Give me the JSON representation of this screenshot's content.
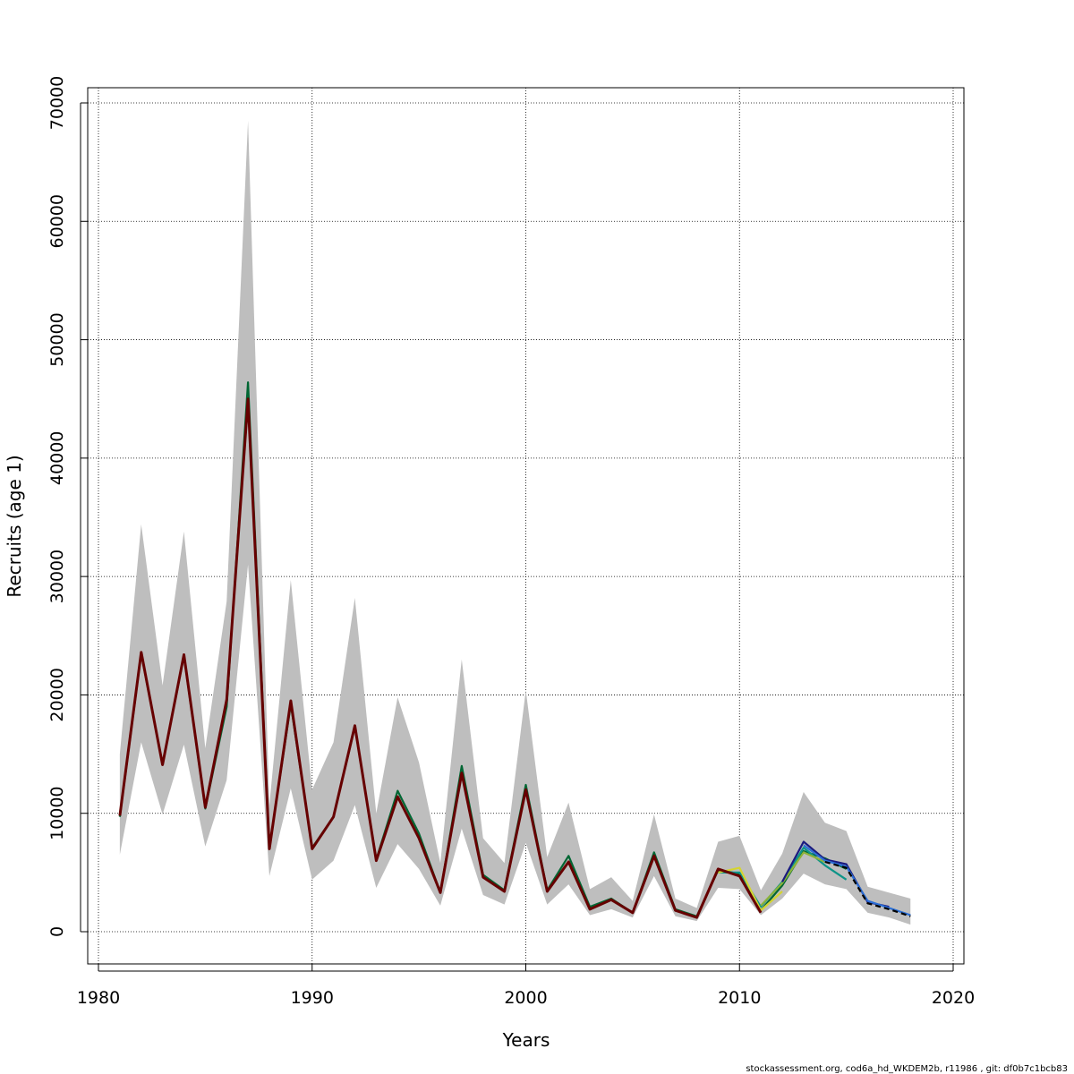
{
  "chart_data": {
    "type": "line",
    "title": "",
    "xlabel": "Years",
    "ylabel": "Recruits (age 1)",
    "xlim": [
      1980,
      2020
    ],
    "ylim": [
      0,
      70000
    ],
    "x_ticks": [
      "1980",
      "1990",
      "2000",
      "2010",
      "2020"
    ],
    "y_ticks": [
      "0",
      "10000",
      "20000",
      "30000",
      "40000",
      "50000",
      "60000",
      "70000"
    ],
    "grid": true,
    "legend": "none",
    "footer": "stockassessment.org, cod6a_hd_WKDEM2b, r11986 , git: df0b7c1bcb83",
    "confidence_band": {
      "x": [
        1981,
        1982,
        1983,
        1984,
        1985,
        1986,
        1987,
        1988,
        1989,
        1990,
        1991,
        1992,
        1993,
        1994,
        1995,
        1996,
        1997,
        1998,
        1999,
        2000,
        2001,
        2002,
        2003,
        2004,
        2005,
        2006,
        2007,
        2008,
        2009,
        2010,
        2011,
        2012,
        2013,
        2014,
        2015,
        2016,
        2017,
        2018
      ],
      "lower": [
        6500,
        16000,
        9900,
        15800,
        7200,
        12800,
        31000,
        4700,
        12100,
        4400,
        6000,
        10700,
        3700,
        7400,
        5300,
        2200,
        8700,
        3100,
        2300,
        7500,
        2300,
        4000,
        1400,
        1900,
        1200,
        4700,
        1300,
        900,
        3700,
        3600,
        1400,
        2800,
        4900,
        4000,
        3600,
        1600,
        1200,
        600
      ],
      "upper": [
        15000,
        34400,
        20800,
        33800,
        15500,
        27900,
        68500,
        10700,
        29700,
        12000,
        16000,
        28200,
        10000,
        19800,
        14300,
        5800,
        23000,
        7900,
        5800,
        20400,
        6300,
        10900,
        3600,
        4600,
        2600,
        9900,
        2800,
        2000,
        7600,
        8100,
        3500,
        6600,
        11800,
        9200,
        8500,
        3800,
        3300,
        2800
      ]
    },
    "series": [
      {
        "color": "#660000",
        "x": [
          1981,
          1982,
          1983,
          1984,
          1985,
          1986,
          1987,
          1988,
          1989,
          1990,
          1991,
          1992,
          1993,
          1994,
          1995,
          1996,
          1997,
          1998,
          1999,
          2000,
          2001,
          2002,
          2003,
          2004,
          2005,
          2006,
          2007,
          2008,
          2009,
          2010,
          2011
        ],
        "y": [
          9800,
          23600,
          14100,
          23400,
          10500,
          19600,
          45000,
          7000,
          19500,
          7000,
          9700,
          17400,
          6000,
          11400,
          7900,
          3300,
          13400,
          4600,
          3400,
          12000,
          3400,
          5900,
          1900,
          2700,
          1600,
          6400,
          1800,
          1200,
          5300,
          4700,
          1600
        ]
      },
      {
        "color": "#006633",
        "x": [
          1981,
          1982,
          1983,
          1984,
          1985,
          1986,
          1987,
          1988,
          1989,
          1990,
          1991,
          1992,
          1993,
          1994,
          1995,
          1996,
          1997,
          1998,
          1999,
          2000,
          2001,
          2002,
          2003,
          2004,
          2005,
          2006,
          2007,
          2008,
          2009,
          2010,
          2011,
          2012,
          2013,
          2014,
          2015
        ],
        "y": [
          9700,
          23500,
          14100,
          23300,
          10400,
          19000,
          46400,
          7100,
          19200,
          7100,
          9700,
          17300,
          6100,
          11900,
          8300,
          3300,
          14000,
          4800,
          3500,
          12400,
          3500,
          6400,
          2100,
          2800,
          1600,
          6700,
          1900,
          1300,
          5200,
          4900,
          1800,
          3900,
          6800,
          6200,
          5300
        ]
      },
      {
        "color": "#0d9488",
        "x": [
          2009,
          2010,
          2011,
          2012,
          2013,
          2014,
          2015
        ],
        "y": [
          5000,
          5000,
          2100,
          4200,
          7100,
          5600,
          4400
        ]
      },
      {
        "color": "#d4d433",
        "x": [
          2009,
          2010,
          2011,
          2012
        ],
        "y": [
          5000,
          5400,
          1800,
          3400
        ]
      },
      {
        "color": "#8db33a",
        "x": [
          2011,
          2012,
          2013,
          2014
        ],
        "y": [
          2200,
          4100,
          6700,
          5900
        ]
      },
      {
        "color": "#1a1a80",
        "x": [
          2012,
          2013,
          2014,
          2015,
          2016,
          2017
        ],
        "y": [
          4200,
          7600,
          6100,
          5700,
          2500,
          2100
        ]
      },
      {
        "color": "#2b6fd6",
        "x": [
          2013,
          2014,
          2015,
          2016,
          2017,
          2018
        ],
        "y": [
          7300,
          6000,
          5500,
          2600,
          2000,
          1400
        ]
      },
      {
        "color": "#000000",
        "dashed": true,
        "x": [
          2014,
          2015,
          2016,
          2017,
          2018
        ],
        "y": [
          5900,
          5400,
          2400,
          1900,
          1300
        ]
      }
    ]
  }
}
